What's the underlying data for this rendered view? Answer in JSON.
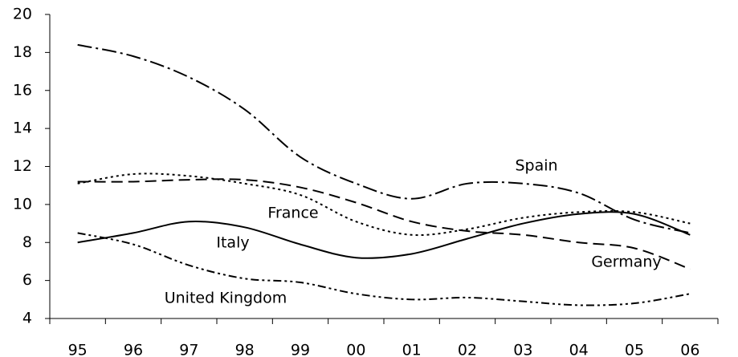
{
  "chart_data": {
    "type": "line",
    "categories": [
      "95",
      "96",
      "97",
      "98",
      "99",
      "00",
      "01",
      "02",
      "03",
      "04",
      "05",
      "06"
    ],
    "ylim": [
      4,
      20
    ],
    "yticks": [
      4,
      6,
      8,
      10,
      12,
      14,
      16,
      18,
      20
    ],
    "series": [
      {
        "name": "Spain",
        "color": "#000000",
        "values": [
          18.4,
          17.8,
          16.7,
          15.0,
          12.5,
          11.1,
          10.3,
          11.1,
          11.1,
          10.6,
          9.2,
          8.5
        ]
      },
      {
        "name": "France",
        "color": "#000000",
        "values": [
          11.1,
          11.6,
          11.5,
          11.1,
          10.5,
          9.1,
          8.4,
          8.7,
          9.3,
          9.6,
          9.6,
          9.0
        ]
      },
      {
        "name": "Italy",
        "color": "#000000",
        "values": [
          11.2,
          11.2,
          11.3,
          11.3,
          10.9,
          10.1,
          9.1,
          8.6,
          8.4,
          8.0,
          7.7,
          6.6
        ]
      },
      {
        "name": "Germany",
        "color": "#000000",
        "values": [
          8.0,
          8.5,
          9.1,
          8.8,
          7.9,
          7.2,
          7.4,
          8.2,
          9.0,
          9.5,
          9.5,
          8.4
        ]
      },
      {
        "name": "United Kingdom",
        "color": "#000000",
        "values": [
          8.5,
          7.9,
          6.8,
          6.1,
          5.9,
          5.3,
          5.0,
          5.1,
          4.9,
          4.7,
          4.8,
          5.3
        ]
      }
    ]
  }
}
